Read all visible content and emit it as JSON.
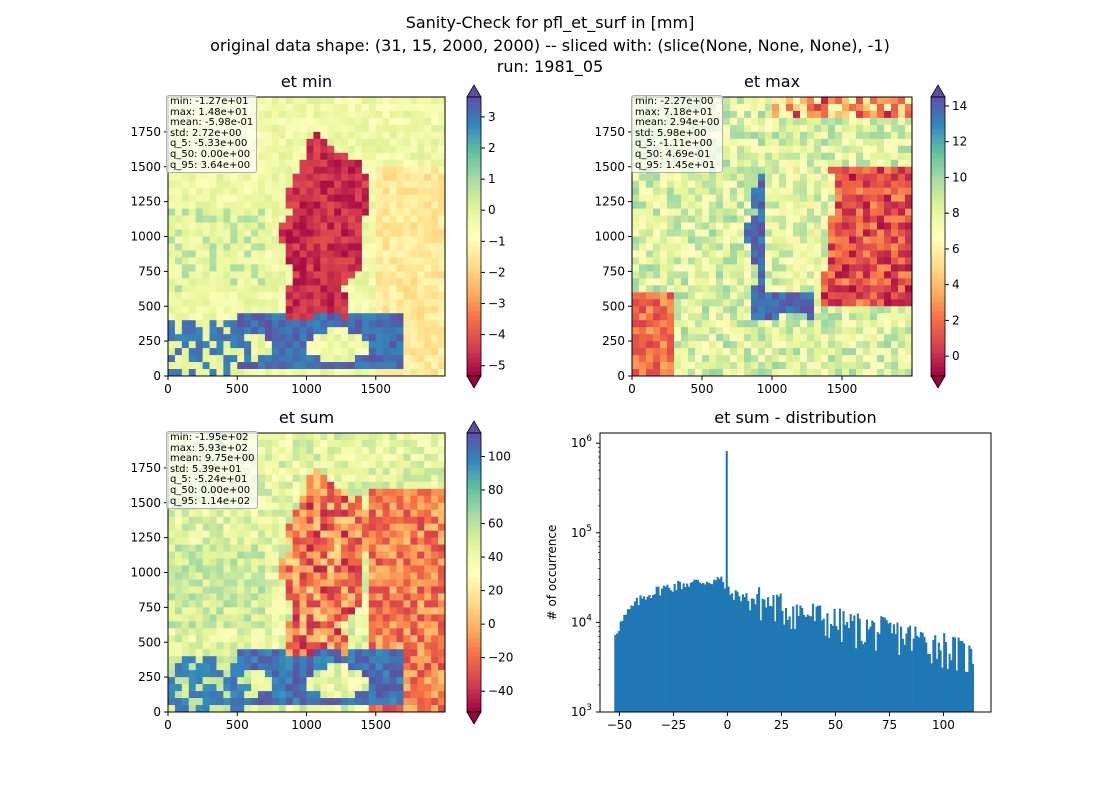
{
  "suptitle": [
    "Sanity-Check for pfl_et_surf in [mm]",
    "original data shape: (31, 15, 2000, 2000) -- sliced with: (slice(None, None, None), -1)",
    "run: 1981_05"
  ],
  "colors": {
    "spectral": [
      "#9e0142",
      "#d53e4f",
      "#f46d43",
      "#fdae61",
      "#fee08b",
      "#ffffbf",
      "#e6f598",
      "#abdda4",
      "#66c2a5",
      "#3288bd",
      "#5e4fa2"
    ],
    "hist_bar": "#1f77b4",
    "axis": "#000000"
  },
  "chart_data": [
    {
      "type": "heatmap",
      "title": "et min",
      "xlim": [
        0,
        2000
      ],
      "ylim": [
        0,
        2000
      ],
      "xticks": [
        0,
        500,
        1000,
        1500
      ],
      "yticks": [
        0,
        250,
        500,
        750,
        1000,
        1250,
        1500,
        1750
      ],
      "colorbar": {
        "vmin": -5.33,
        "vmax": 3.64,
        "ticks": [
          -5,
          -4,
          -3,
          -2,
          -1,
          0,
          1,
          2,
          3
        ],
        "extend": "both"
      },
      "stats": [
        "min: -1.27e+01",
        "max: 1.48e+01",
        "mean: -5.98e-01",
        "std: 2.72e+00",
        "q_5: -5.33e+00",
        "q_50: 0.00e+00",
        "q_95: 3.64e+00"
      ]
    },
    {
      "type": "heatmap",
      "title": "et max",
      "xlim": [
        0,
        2000
      ],
      "ylim": [
        0,
        2000
      ],
      "xticks": [
        0,
        500,
        1000,
        1500
      ],
      "yticks": [
        0,
        250,
        500,
        750,
        1000,
        1250,
        1500,
        1750
      ],
      "colorbar": {
        "vmin": -1.11,
        "vmax": 14.5,
        "ticks": [
          0,
          2,
          4,
          6,
          8,
          10,
          12,
          14
        ],
        "extend": "both"
      },
      "stats": [
        "min: -2.27e+00",
        "max: 7.18e+01",
        "mean: 2.94e+00",
        "std: 5.98e+00",
        "q_5: -1.11e+00",
        "q_50: 4.69e-01",
        "q_95: 1.45e+01"
      ]
    },
    {
      "type": "heatmap",
      "title": "et sum",
      "xlim": [
        0,
        2000
      ],
      "ylim": [
        0,
        2000
      ],
      "xticks": [
        0,
        500,
        1000,
        1500
      ],
      "yticks": [
        0,
        250,
        500,
        750,
        1000,
        1250,
        1500,
        1750
      ],
      "colorbar": {
        "vmin": -52.4,
        "vmax": 114,
        "ticks": [
          -40,
          -20,
          0,
          20,
          40,
          60,
          80,
          100
        ],
        "extend": "both"
      },
      "stats": [
        "min: -1.95e+02",
        "max: 5.93e+02",
        "mean: 9.75e+00",
        "std: 5.39e+01",
        "q_5: -5.24e+01",
        "q_50: 0.00e+00",
        "q_95: 1.14e+02"
      ]
    },
    {
      "type": "bar",
      "title": "et sum - distribution",
      "ylabel": "# of occurrence",
      "yscale": "log",
      "xlim": [
        -59,
        122
      ],
      "ylim": [
        1000,
        1300000
      ],
      "xticks": [
        -50,
        -25,
        0,
        25,
        50,
        75,
        100
      ],
      "xtick_labels": [
        "−50",
        "−25",
        "0",
        "25",
        "50",
        "75",
        "100"
      ],
      "yticks": [
        1000,
        10000,
        100000,
        1000000
      ],
      "ytick_labels": [
        "10",
        "10",
        "10",
        "10"
      ],
      "ytick_exps": [
        "3",
        "4",
        "5",
        "6"
      ],
      "bin_range": [
        -52.4,
        114
      ],
      "bin_count": 200,
      "profile": [
        {
          "x": -52.4,
          "y": 7500
        },
        {
          "x": -48,
          "y": 11000
        },
        {
          "x": -44,
          "y": 15000
        },
        {
          "x": -38,
          "y": 20000
        },
        {
          "x": -30,
          "y": 24000
        },
        {
          "x": -20,
          "y": 27000
        },
        {
          "x": -10,
          "y": 29000
        },
        {
          "x": -3,
          "y": 30000
        },
        {
          "x": 1,
          "y": 21000
        },
        {
          "x": 10,
          "y": 19000
        },
        {
          "x": 25,
          "y": 15000
        },
        {
          "x": 40,
          "y": 12000
        },
        {
          "x": 55,
          "y": 9500
        },
        {
          "x": 70,
          "y": 8200
        },
        {
          "x": 85,
          "y": 7000
        },
        {
          "x": 100,
          "y": 5600
        },
        {
          "x": 114,
          "y": 4000
        }
      ],
      "spike": {
        "x": -0.5,
        "y": 820000
      }
    }
  ]
}
